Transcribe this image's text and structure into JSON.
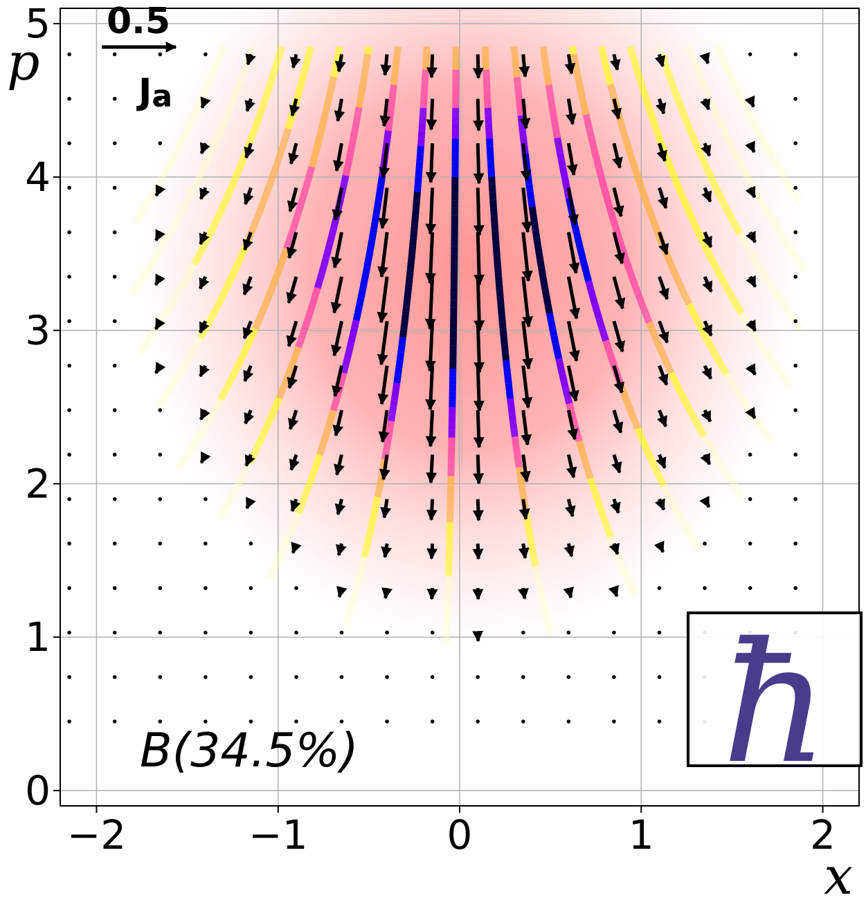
{
  "chart_data": {
    "type": "quiver",
    "title": "",
    "xlabel": "x",
    "ylabel": "p",
    "xlim": [
      -2.2,
      2.2
    ],
    "ylim": [
      -0.1,
      5.1
    ],
    "x_ticks": [
      -2,
      -1,
      0,
      1,
      2
    ],
    "x_tick_labels": [
      "−2",
      "−1",
      "0",
      "1",
      "2"
    ],
    "y_ticks": [
      0,
      1,
      2,
      3,
      4,
      5
    ],
    "y_tick_labels": [
      "0",
      "1",
      "2",
      "3",
      "4",
      "5"
    ],
    "grid": true,
    "background": {
      "type": "density",
      "color": "#ff9090",
      "center": [
        0.05,
        3.4
      ],
      "width": [
        0.75,
        1.0
      ]
    },
    "quiver": {
      "key_value": "0.5",
      "key_label": "J",
      "key_subscript": "a",
      "key_position": "top-left",
      "grid_x": [
        -2.15,
        -1.9,
        -1.65,
        -1.4,
        -1.15,
        -0.9,
        -0.65,
        -0.4,
        -0.15,
        0.1,
        0.35,
        0.6,
        0.85,
        1.1,
        1.35,
        1.6,
        1.85
      ],
      "grid_p": [
        4.8,
        4.51,
        4.22,
        3.93,
        3.64,
        3.35,
        3.06,
        2.77,
        2.48,
        2.19,
        1.9,
        1.61,
        1.32,
        1.03,
        0.74,
        0.45
      ]
    },
    "streamline_colormap": [
      "#ffffc8",
      "#ffff00",
      "#ffb040",
      "#ff4da6",
      "#8000ff",
      "#0000ff",
      "#000040"
    ],
    "annotation": "B(34.5%)",
    "inset_symbol": "ħ"
  }
}
